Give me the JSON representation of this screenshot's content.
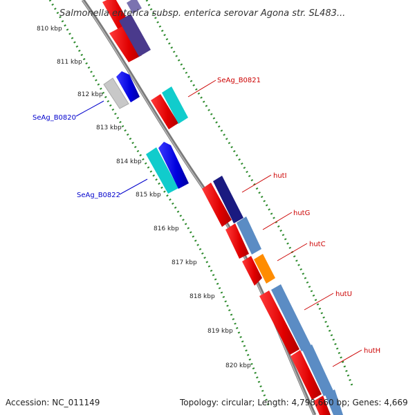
{
  "title": "Salmonella enterica subsp. enterica serovar Agona str. SL483...",
  "footer": {
    "accession": "Accession: NC_011149",
    "summary": "Topology: circular; Length: 4,798,660 bp; Genes: 4,669"
  },
  "ticks": [
    "810 kbp",
    "811 kbp",
    "812 kbp",
    "813 kbp",
    "814 kbp",
    "815 kbp",
    "816 kbp",
    "817 kbp",
    "818 kbp",
    "819 kbp",
    "820 kbp"
  ],
  "gene_labels": [
    {
      "text": "SeAg_B0821",
      "color": "#cc0000"
    },
    {
      "text": "SeAg_B0820",
      "color": "#0000cc"
    },
    {
      "text": "SeAg_B0822",
      "color": "#0000cc"
    },
    {
      "text": "hutI",
      "color": "#cc0000"
    },
    {
      "text": "hutG",
      "color": "#cc0000"
    },
    {
      "text": "hutC",
      "color": "#cc0000"
    },
    {
      "text": "hutU",
      "color": "#cc0000"
    },
    {
      "text": "hutH",
      "color": "#cc0000"
    }
  ],
  "colors": {
    "backbone": "#808080",
    "tick_dots": "#2e8b2e",
    "cds_forward": "#ee0000",
    "cds_reverse": "#0000dd",
    "dark_navy": "#1a1a80",
    "slate": "#6e7fb8",
    "steel_blue": "#5b8cc4",
    "cyan": "#11cccc",
    "orange": "#ff8c00",
    "grey": "#c8c8c8",
    "purple": "#4a3a8c"
  }
}
